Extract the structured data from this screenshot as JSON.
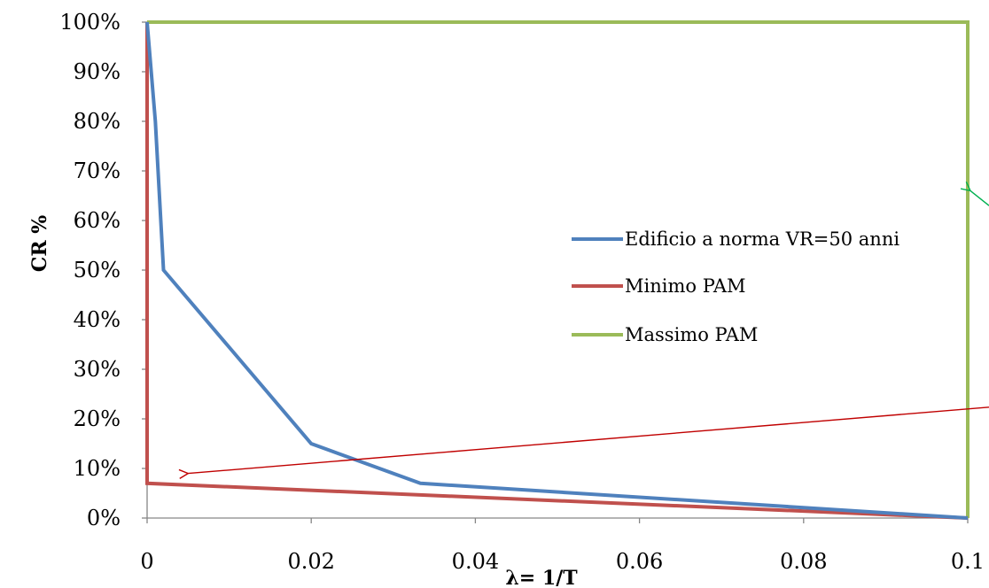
{
  "chart_data": {
    "type": "line",
    "xlabel": "λ= 1/T",
    "ylabel": "CR %",
    "xlim": [
      0,
      0.1
    ],
    "ylim": [
      0,
      100
    ],
    "x_ticks": [
      0,
      0.02,
      0.04,
      0.06,
      0.08,
      0.1
    ],
    "x_tick_labels": [
      "0",
      "0.02",
      "0.04",
      "0.06",
      "0.08",
      "0.1"
    ],
    "y_ticks": [
      0,
      10,
      20,
      30,
      40,
      50,
      60,
      70,
      80,
      90,
      100
    ],
    "y_tick_labels": [
      "0%",
      "10%",
      "20%",
      "30%",
      "40%",
      "50%",
      "60%",
      "70%",
      "80%",
      "90%",
      "100%"
    ],
    "grid": false,
    "legend_position": "center-right",
    "series": [
      {
        "name": "Edificio a norma VR=50 anni",
        "color": "#4f81bd",
        "x": [
          0,
          0.001,
          0.002,
          0.02,
          0.0333,
          0.1
        ],
        "y": [
          100,
          80,
          50,
          15,
          7,
          0
        ]
      },
      {
        "name": "Minimo PAM",
        "color": "#c0504d",
        "x": [
          0,
          0,
          0.1
        ],
        "y": [
          100,
          7,
          0
        ]
      },
      {
        "name": "Massimo PAM",
        "color": "#9bbb59",
        "x": [
          0,
          0.1,
          0.1
        ],
        "y": [
          100,
          100,
          0
        ]
      }
    ],
    "annotations": [
      {
        "type": "arrow",
        "color": "#c00000",
        "from": [
          0.1,
          22
        ],
        "to": [
          0.005,
          9
        ]
      },
      {
        "type": "arrow",
        "color": "#00b050",
        "from": [
          0.1,
          63
        ],
        "to": [
          0.1,
          66
        ]
      }
    ]
  }
}
